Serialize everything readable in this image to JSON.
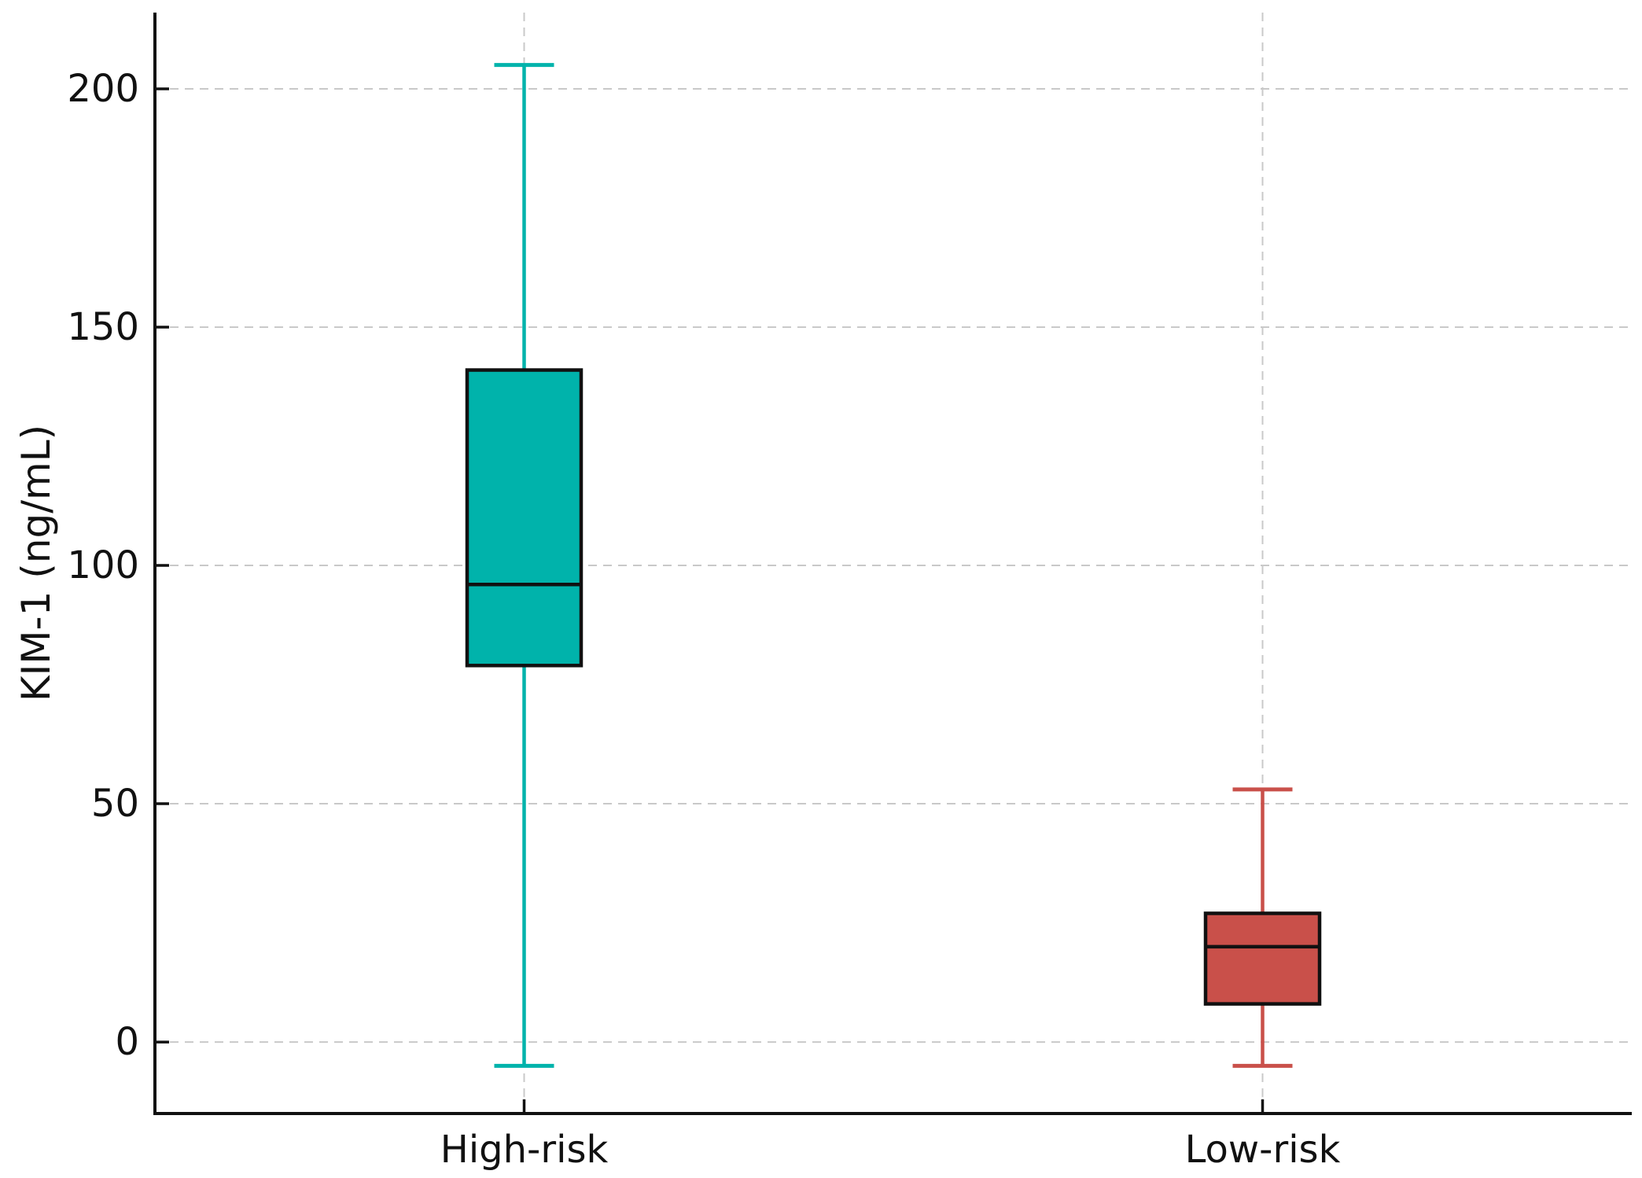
{
  "figure": {
    "background": "#ffffff"
  },
  "chart_data": {
    "type": "box",
    "title": "",
    "xlabel": "",
    "ylabel": "KIM-1 (ng/mL)",
    "categories": [
      "High-risk",
      "Low-risk"
    ],
    "yticks": [
      0,
      50,
      100,
      150,
      200
    ],
    "ytick_labels": [
      "0",
      "50",
      "100",
      "150",
      "200"
    ],
    "ylim": [
      -15,
      216
    ],
    "grid": "dashed horizontal gridlines at each ytick and dashed vertical line at each category center",
    "legend": "none",
    "series": [
      {
        "name": "High-risk",
        "whisker_low": -5,
        "q1": 79,
        "median": 96,
        "q3": 141,
        "whisker_high": 205,
        "color": "#00B3AB"
      },
      {
        "name": "Low-risk",
        "whisker_low": -5,
        "q1": 8,
        "median": 20,
        "q3": 27,
        "whisker_high": 53,
        "color": "#C9504A"
      }
    ],
    "colors": {
      "box_edge": "#111111",
      "median": "#111111",
      "grid": "#c9c9c9",
      "axis": "#111111",
      "text": "#111111"
    }
  }
}
